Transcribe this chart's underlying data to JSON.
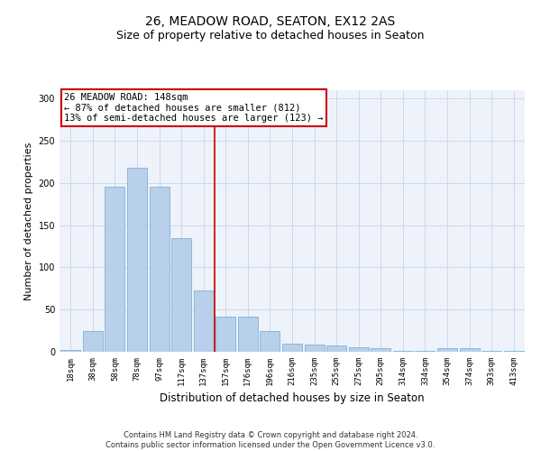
{
  "title": "26, MEADOW ROAD, SEATON, EX12 2AS",
  "subtitle": "Size of property relative to detached houses in Seaton",
  "xlabel": "Distribution of detached houses by size in Seaton",
  "ylabel": "Number of detached properties",
  "categories": [
    "18sqm",
    "38sqm",
    "58sqm",
    "78sqm",
    "97sqm",
    "117sqm",
    "137sqm",
    "157sqm",
    "176sqm",
    "196sqm",
    "216sqm",
    "235sqm",
    "255sqm",
    "275sqm",
    "295sqm",
    "314sqm",
    "334sqm",
    "354sqm",
    "374sqm",
    "393sqm",
    "413sqm"
  ],
  "values": [
    2,
    25,
    196,
    218,
    196,
    135,
    73,
    42,
    42,
    25,
    10,
    9,
    7,
    5,
    4,
    1,
    1,
    4,
    4,
    1,
    1
  ],
  "bar_color": "#b8d0ea",
  "bar_edgecolor": "#6aaad4",
  "vline_x_index": 7,
  "vline_color": "#cc0000",
  "annotation_text": "26 MEADOW ROAD: 148sqm\n← 87% of detached houses are smaller (812)\n13% of semi-detached houses are larger (123) →",
  "annotation_box_edgecolor": "#cc0000",
  "annotation_box_facecolor": "#ffffff",
  "ylim": [
    0,
    310
  ],
  "yticks": [
    0,
    50,
    100,
    150,
    200,
    250,
    300
  ],
  "grid_color": "#d0d8e8",
  "bg_color": "#eef2fa",
  "footer": "Contains HM Land Registry data © Crown copyright and database right 2024.\nContains public sector information licensed under the Open Government Licence v3.0.",
  "title_fontsize": 10,
  "subtitle_fontsize": 9,
  "tick_fontsize": 6.5,
  "ylabel_fontsize": 8,
  "xlabel_fontsize": 8.5,
  "annotation_fontsize": 7.5,
  "footer_fontsize": 6
}
